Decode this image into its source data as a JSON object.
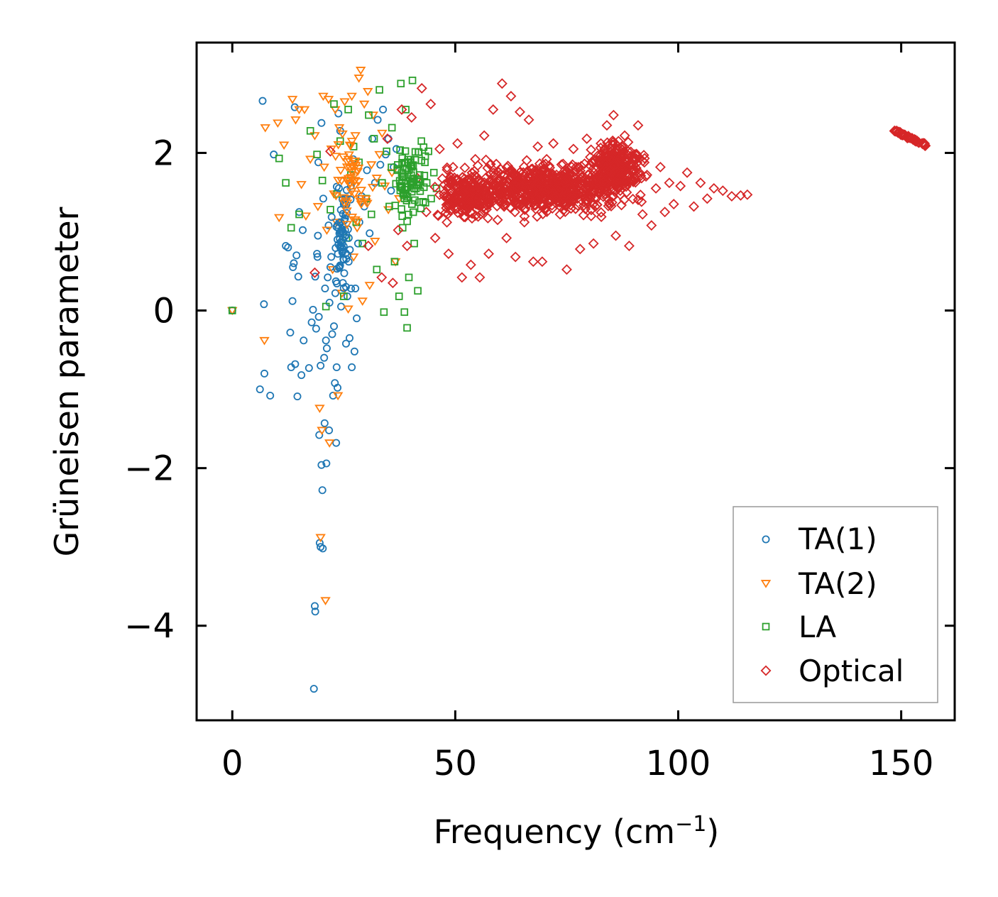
{
  "chart_data": {
    "type": "scatter",
    "title": "",
    "xlabel": "Frequency (cm",
    "xlabel_sup": "−1",
    "xlabel_close": ")",
    "ylabel": "Grüneisen parameter",
    "xlim": [
      -8,
      162
    ],
    "ylim": [
      -5.2,
      3.4
    ],
    "xticks": [
      0,
      50,
      100,
      150
    ],
    "xtick_labels": [
      "0",
      "50",
      "100",
      "150"
    ],
    "yticks": [
      -4,
      -2,
      0,
      2
    ],
    "ytick_labels": [
      "−4",
      "−2",
      "0",
      "2"
    ],
    "grid": false,
    "legend_position": "lower-right",
    "series": [
      {
        "name": "TA(1)",
        "marker": "circle",
        "color": "#1f77b4",
        "points": [
          [
            0,
            0
          ],
          [
            6.2,
            -1.0
          ],
          [
            6.8,
            2.66
          ],
          [
            7.1,
            0.08
          ],
          [
            7.2,
            -0.8
          ],
          [
            8.5,
            -1.08
          ],
          [
            9.3,
            1.98
          ],
          [
            12.0,
            0.82
          ],
          [
            12.5,
            0.8
          ],
          [
            13.0,
            -0.28
          ],
          [
            13.2,
            -0.72
          ],
          [
            13.5,
            0.12
          ],
          [
            13.6,
            0.55
          ],
          [
            13.8,
            0.6
          ],
          [
            14.0,
            2.58
          ],
          [
            14.1,
            -0.68
          ],
          [
            14.4,
            0.7
          ],
          [
            14.6,
            -1.09
          ],
          [
            14.8,
            0.43
          ],
          [
            15.0,
            1.25
          ],
          [
            15.5,
            -0.82
          ],
          [
            15.8,
            1.02
          ],
          [
            16.0,
            -0.38
          ],
          [
            17.2,
            -0.73
          ],
          [
            17.8,
            -0.15
          ],
          [
            18.1,
            0.01
          ],
          [
            18.3,
            -4.8
          ],
          [
            18.5,
            -3.75
          ],
          [
            18.6,
            -3.82
          ],
          [
            18.6,
            0.43
          ],
          [
            18.8,
            -0.23
          ],
          [
            19.0,
            0.72
          ],
          [
            19.1,
            0.68
          ],
          [
            19.2,
            0.95
          ],
          [
            19.3,
            1.88
          ],
          [
            19.4,
            -0.08
          ],
          [
            19.5,
            -1.58
          ],
          [
            19.6,
            -2.95
          ],
          [
            19.8,
            -3.0
          ],
          [
            19.8,
            -0.7
          ],
          [
            20.0,
            2.38
          ],
          [
            20.0,
            -1.96
          ],
          [
            20.2,
            -2.28
          ],
          [
            20.3,
            -3.02
          ],
          [
            20.4,
            1.42
          ],
          [
            20.6,
            -0.6
          ],
          [
            20.7,
            -1.43
          ],
          [
            20.8,
            0.28
          ],
          [
            21.0,
            -0.38
          ],
          [
            21.1,
            -1.94
          ],
          [
            21.2,
            -0.48
          ],
          [
            21.4,
            0.42
          ],
          [
            21.6,
            1.08
          ],
          [
            21.7,
            -1.52
          ],
          [
            21.8,
            0.1
          ],
          [
            22.0,
            0.55
          ],
          [
            22.2,
            0.68
          ],
          [
            22.4,
            -0.3
          ],
          [
            22.6,
            -1.08
          ],
          [
            22.8,
            -0.2
          ],
          [
            23.0,
            -0.92
          ],
          [
            23.1,
            0.22
          ],
          [
            23.3,
            -1.68
          ],
          [
            23.4,
            -0.72
          ],
          [
            23.6,
            -0.98
          ],
          [
            23.8,
            2.5
          ],
          [
            24.0,
            1.12
          ],
          [
            24.2,
            2.28
          ],
          [
            24.4,
            0.05
          ],
          [
            24.6,
            0.8
          ],
          [
            24.8,
            0.35
          ],
          [
            25.0,
            1.35
          ],
          [
            25.3,
            1.02
          ],
          [
            25.5,
            -0.42
          ],
          [
            25.8,
            0.18
          ],
          [
            26.1,
            0.62
          ],
          [
            26.3,
            -0.35
          ],
          [
            26.6,
            1.58
          ],
          [
            26.8,
            -0.72
          ],
          [
            27.1,
            1.92
          ],
          [
            27.4,
            -0.52
          ],
          [
            27.6,
            0.28
          ],
          [
            27.9,
            -0.1
          ],
          [
            28.2,
            0.85
          ],
          [
            28.5,
            1.12
          ],
          [
            29.0,
            1.45
          ],
          [
            29.6,
            1.32
          ],
          [
            30.2,
            1.78
          ],
          [
            30.8,
            0.98
          ],
          [
            31.4,
            2.18
          ],
          [
            32.0,
            1.62
          ],
          [
            32.6,
            2.42
          ],
          [
            33.2,
            1.85
          ],
          [
            33.8,
            2.55
          ],
          [
            34.4,
            1.98
          ],
          [
            35.0,
            2.18
          ],
          [
            35.6,
            1.52
          ],
          [
            36.2,
            1.82
          ],
          [
            36.8,
            2.05
          ]
        ]
      },
      {
        "name": "TA(2)",
        "marker": "triangle",
        "color": "#ff7f0e",
        "points": [
          [
            0,
            0
          ],
          [
            7.2,
            -0.38
          ],
          [
            7.4,
            2.32
          ],
          [
            10.2,
            2.38
          ],
          [
            10.5,
            1.18
          ],
          [
            11.6,
            2.1
          ],
          [
            13.5,
            2.68
          ],
          [
            14.2,
            2.42
          ],
          [
            15.0,
            2.55
          ],
          [
            15.5,
            1.6
          ],
          [
            16.2,
            2.55
          ],
          [
            16.5,
            1.2
          ],
          [
            17.5,
            1.92
          ],
          [
            18.5,
            2.22
          ],
          [
            19.2,
            1.32
          ],
          [
            19.6,
            -1.24
          ],
          [
            19.8,
            -2.88
          ],
          [
            20.1,
            -1.52
          ],
          [
            20.4,
            2.72
          ],
          [
            20.6,
            1.82
          ],
          [
            20.9,
            -3.68
          ],
          [
            21.2,
            1.02
          ],
          [
            21.6,
            2.68
          ],
          [
            21.8,
            -1.68
          ],
          [
            22.2,
            2.05
          ],
          [
            22.5,
            0.52
          ],
          [
            22.8,
            1.48
          ],
          [
            23.1,
            2.55
          ],
          [
            23.4,
            1.12
          ],
          [
            23.7,
            -1.08
          ],
          [
            24.0,
            2.32
          ],
          [
            24.3,
            1.78
          ],
          [
            24.6,
            0.22
          ],
          [
            24.9,
            1.95
          ],
          [
            25.2,
            2.65
          ],
          [
            25.6,
            1.42
          ],
          [
            26.0,
            0.02
          ],
          [
            26.4,
            1.62
          ],
          [
            26.8,
            2.72
          ],
          [
            27.2,
            0.68
          ],
          [
            27.6,
            2.22
          ],
          [
            28.0,
            1.05
          ],
          [
            28.4,
            2.95
          ],
          [
            28.8,
            3.05
          ],
          [
            29.2,
            0.12
          ],
          [
            29.6,
            2.62
          ],
          [
            30.0,
            1.38
          ],
          [
            30.4,
            2.78
          ],
          [
            30.8,
            0.32
          ],
          [
            31.2,
            1.85
          ],
          [
            31.6,
            2.48
          ],
          [
            32.0,
            0.88
          ],
          [
            32.4,
            1.68
          ],
          [
            33.0,
            1.98
          ],
          [
            33.6,
            2.25
          ],
          [
            34.2,
            1.58
          ],
          [
            35.0,
            1.28
          ],
          [
            35.8,
            1.75
          ],
          [
            36.6,
            0.62
          ],
          [
            37.4,
            1.42
          ]
        ]
      },
      {
        "name": "LA",
        "marker": "square",
        "color": "#2ca02c",
        "points": [
          [
            0,
            0
          ],
          [
            10.5,
            1.93
          ],
          [
            12.0,
            1.62
          ],
          [
            13.2,
            1.05
          ],
          [
            15.0,
            1.22
          ],
          [
            17.5,
            2.28
          ],
          [
            19.0,
            1.98
          ],
          [
            20.2,
            1.65
          ],
          [
            21.0,
            0.05
          ],
          [
            22.0,
            1.28
          ],
          [
            22.8,
            2.62
          ],
          [
            23.5,
            1.48
          ],
          [
            24.2,
            2.15
          ],
          [
            25.0,
            0.18
          ],
          [
            25.6,
            0.92
          ],
          [
            26.0,
            2.55
          ],
          [
            26.6,
            1.72
          ],
          [
            27.2,
            2.08
          ],
          [
            27.8,
            1.12
          ],
          [
            28.4,
            1.88
          ],
          [
            29.2,
            0.85
          ],
          [
            30.0,
            1.42
          ],
          [
            30.6,
            2.48
          ],
          [
            31.2,
            1.22
          ],
          [
            31.8,
            2.18
          ],
          [
            32.4,
            0.52
          ],
          [
            33.0,
            2.8
          ],
          [
            33.6,
            1.62
          ],
          [
            34.0,
            -0.02
          ],
          [
            34.6,
            2.02
          ],
          [
            35.2,
            1.32
          ],
          [
            35.8,
            2.32
          ],
          [
            36.4,
            0.62
          ],
          [
            37.0,
            1.78
          ],
          [
            37.4,
            0.18
          ],
          [
            37.8,
            2.88
          ],
          [
            38.2,
            1.05
          ],
          [
            38.6,
            -0.02
          ],
          [
            38.9,
            2.55
          ],
          [
            39.2,
            -0.22
          ],
          [
            39.6,
            0.42
          ],
          [
            40.0,
            1.88
          ],
          [
            40.4,
            2.92
          ],
          [
            40.8,
            0.85
          ],
          [
            41.2,
            1.55
          ],
          [
            41.6,
            0.25
          ],
          [
            42.0,
            1.72
          ],
          [
            42.4,
            2.15
          ],
          [
            42.8,
            1.38
          ],
          [
            43.2,
            1.88
          ],
          [
            43.6,
            1.62
          ],
          [
            44.0,
            2.02
          ],
          [
            44.6,
            1.42
          ],
          [
            45.2,
            1.75
          ],
          [
            45.8,
            1.55
          ]
        ]
      },
      {
        "name": "Optical",
        "marker": "diamond",
        "color": "#d62728",
        "points": [
          [
            18.5,
            0.48
          ],
          [
            22.0,
            2.02
          ],
          [
            30.5,
            0.82
          ],
          [
            33.5,
            0.42
          ],
          [
            34.8,
            2.18
          ],
          [
            36.0,
            0.35
          ],
          [
            37.2,
            1.02
          ],
          [
            38.0,
            2.55
          ],
          [
            39.2,
            0.82
          ],
          [
            40.2,
            2.45
          ],
          [
            41.5,
            1.68
          ],
          [
            42.5,
            2.82
          ],
          [
            43.5,
            1.25
          ],
          [
            44.5,
            2.62
          ],
          [
            45.5,
            0.92
          ],
          [
            46.5,
            2.05
          ],
          [
            47.5,
            1.45
          ],
          [
            48.5,
            0.72
          ],
          [
            49.5,
            1.82
          ],
          [
            50.5,
            2.12
          ],
          [
            51.5,
            0.42
          ],
          [
            52.5,
            1.32
          ],
          [
            53.5,
            0.58
          ],
          [
            54.5,
            1.92
          ],
          [
            55.5,
            0.42
          ],
          [
            56.5,
            2.22
          ],
          [
            57.5,
            0.72
          ],
          [
            58.5,
            2.55
          ],
          [
            59.5,
            1.15
          ],
          [
            60.5,
            2.88
          ],
          [
            61.5,
            0.92
          ],
          [
            62.5,
            2.72
          ],
          [
            63.5,
            0.68
          ],
          [
            64.5,
            2.52
          ],
          [
            65.5,
            1.12
          ],
          [
            66.5,
            2.42
          ],
          [
            67.5,
            0.62
          ],
          [
            68.5,
            2.08
          ],
          [
            69.5,
            0.62
          ],
          [
            70.5,
            1.92
          ],
          [
            72.0,
            2.12
          ],
          [
            73.5,
            1.22
          ],
          [
            75.0,
            0.52
          ],
          [
            76.5,
            2.05
          ],
          [
            78.0,
            0.78
          ],
          [
            79.5,
            2.18
          ],
          [
            81.0,
            0.85
          ],
          [
            82.5,
            1.55
          ],
          [
            84.0,
            2.35
          ],
          [
            85.5,
            2.48
          ],
          [
            86.0,
            0.95
          ],
          [
            87.0,
            1.52
          ],
          [
            88.0,
            2.22
          ],
          [
            89.0,
            0.82
          ],
          [
            90.0,
            1.85
          ],
          [
            91.0,
            2.35
          ],
          [
            92.0,
            1.22
          ],
          [
            93.0,
            1.72
          ],
          [
            94.0,
            1.08
          ],
          [
            95.0,
            1.55
          ],
          [
            96.0,
            1.82
          ],
          [
            97.0,
            1.25
          ],
          [
            98.0,
            1.62
          ],
          [
            99.0,
            1.35
          ],
          [
            100.5,
            1.58
          ],
          [
            102.0,
            1.75
          ],
          [
            103.5,
            1.32
          ],
          [
            105.0,
            1.62
          ],
          [
            106.5,
            1.42
          ],
          [
            108.0,
            1.55
          ],
          [
            110.0,
            1.52
          ],
          [
            112.0,
            1.45
          ],
          [
            114.0,
            1.46
          ],
          [
            115.5,
            1.47
          ],
          [
            149.0,
            2.28
          ],
          [
            150.0,
            2.25
          ],
          [
            151.0,
            2.22
          ],
          [
            152.0,
            2.19
          ],
          [
            153.0,
            2.16
          ],
          [
            154.0,
            2.13
          ],
          [
            155.0,
            2.11
          ]
        ]
      }
    ]
  }
}
